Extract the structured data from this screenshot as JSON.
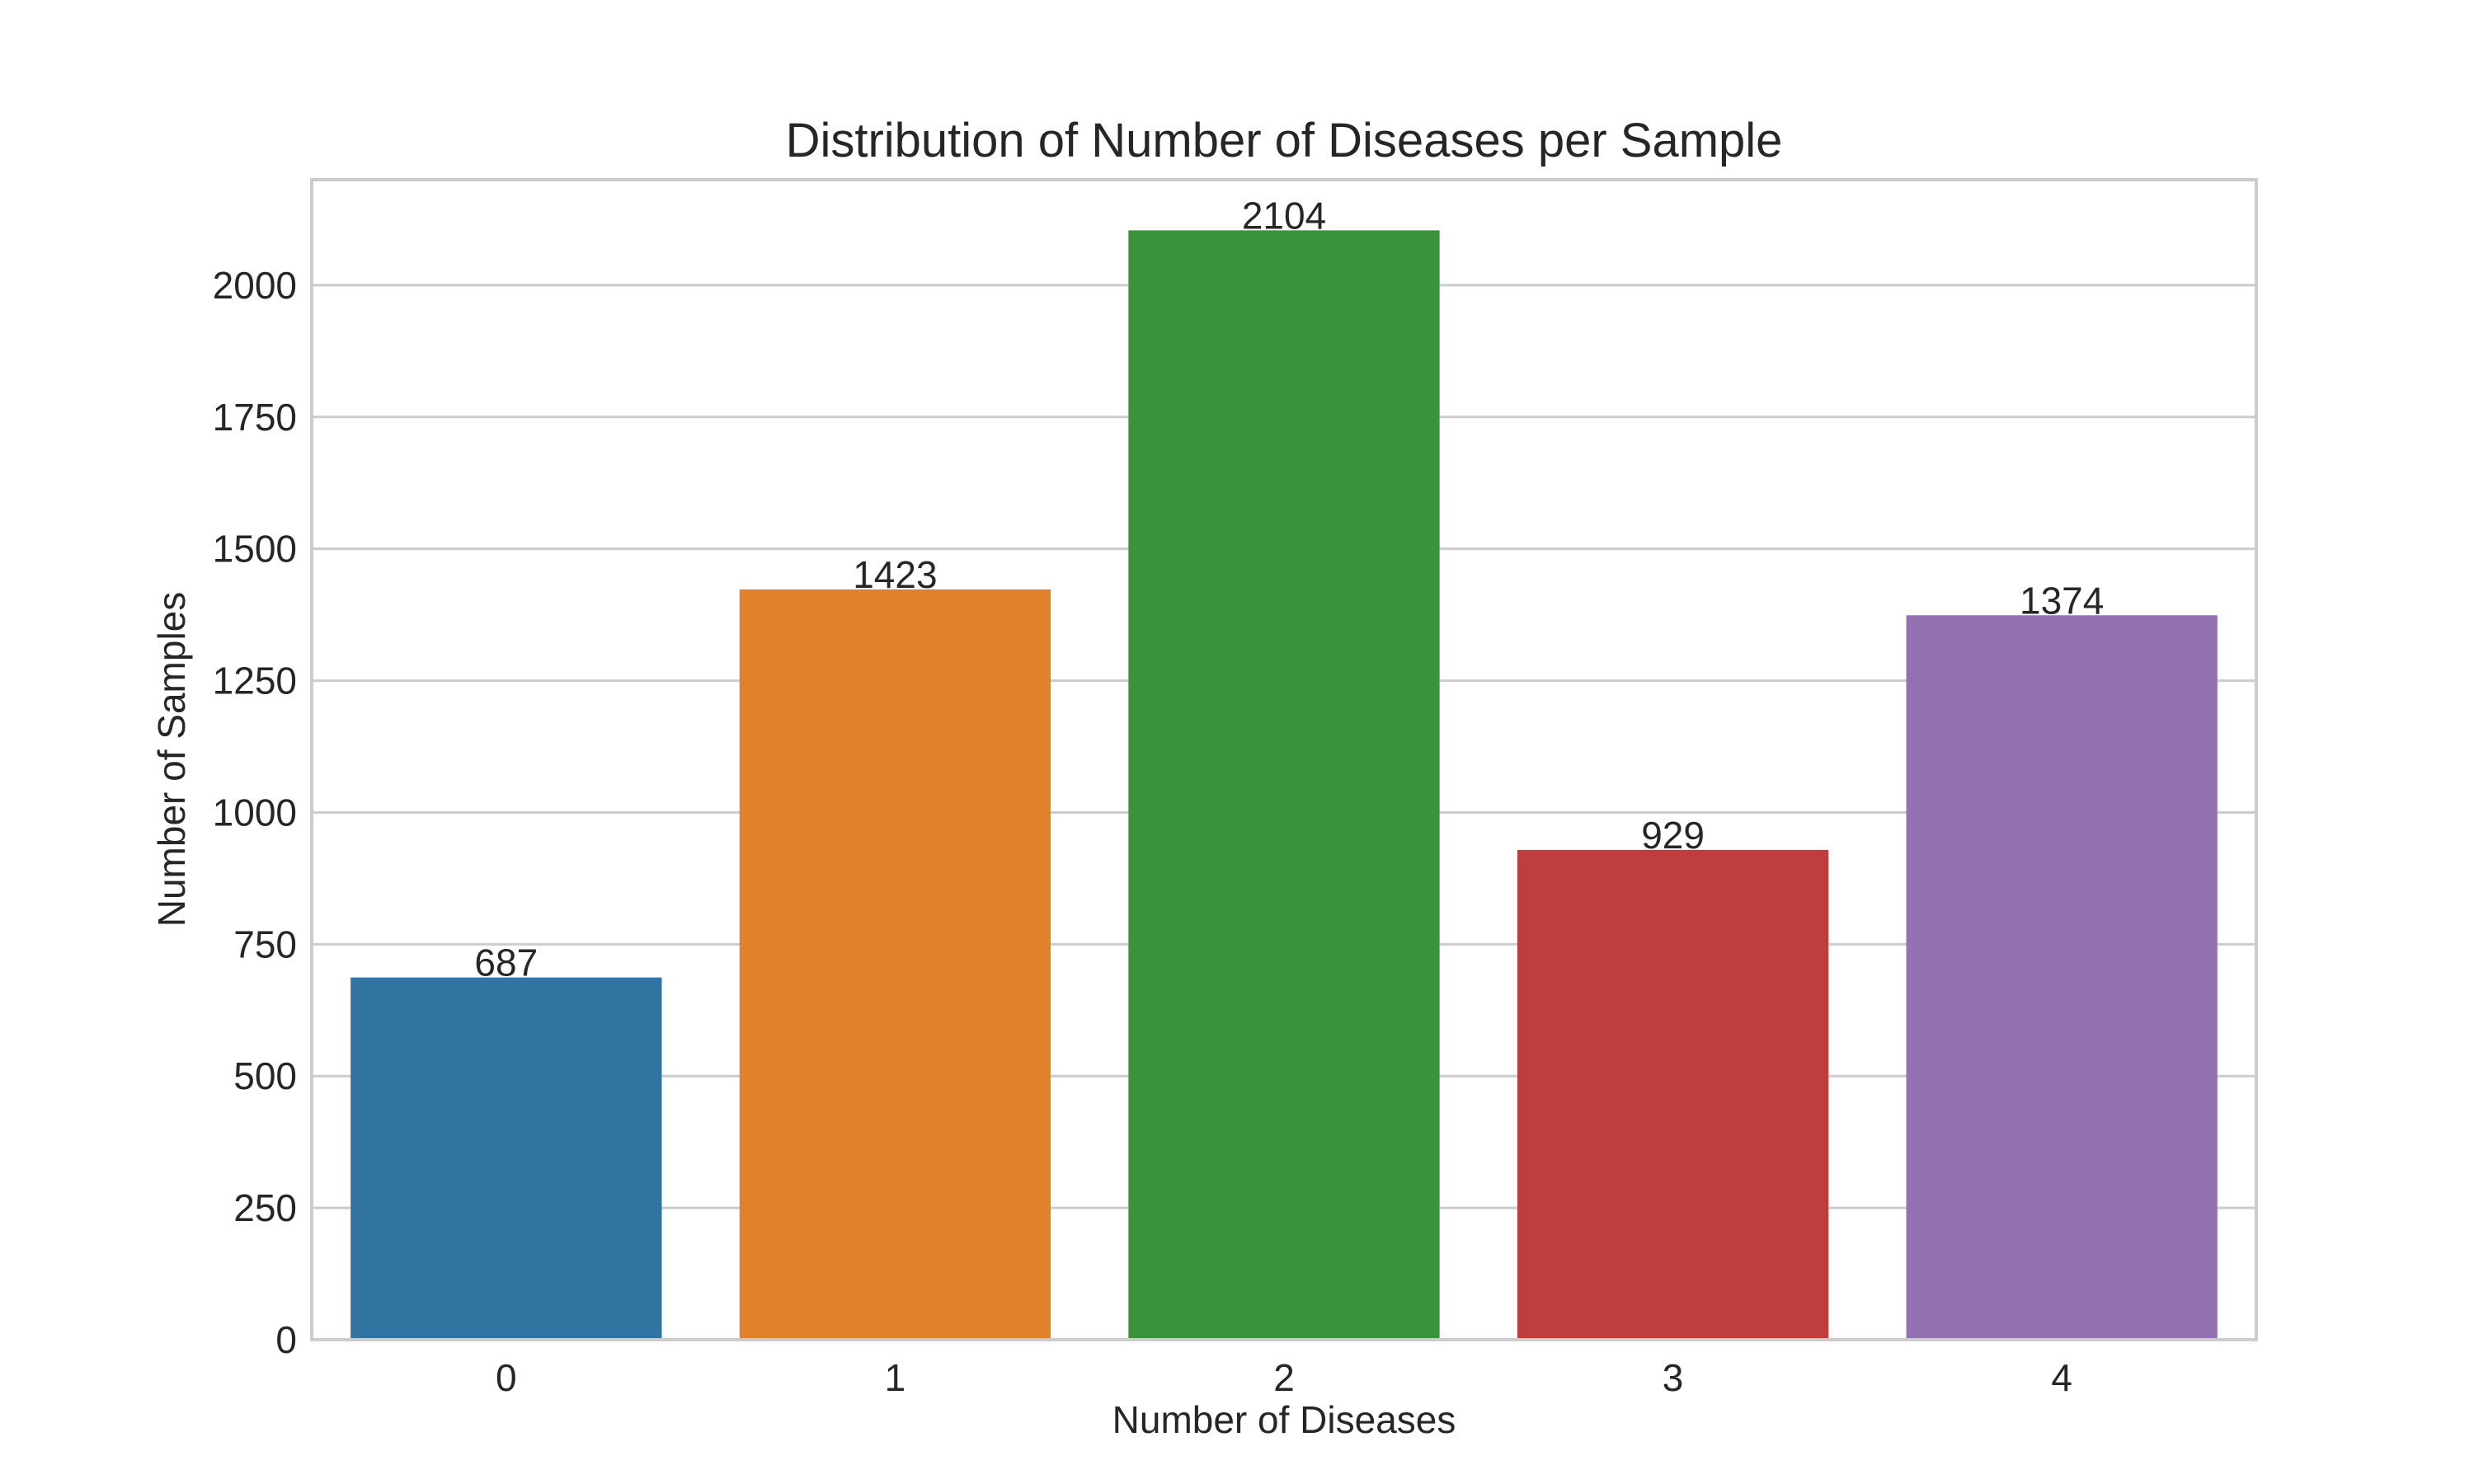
{
  "chart_data": {
    "type": "bar",
    "title": "Distribution of Number of Diseases per Sample",
    "xlabel": "Number of Diseases",
    "ylabel": "Number of Samples",
    "categories": [
      "0",
      "1",
      "2",
      "3",
      "4"
    ],
    "values": [
      687,
      1423,
      2104,
      929,
      1374
    ],
    "data_labels": [
      "687",
      "1423",
      "2104",
      "929",
      "1374"
    ],
    "colors": [
      "#3274a1",
      "#e1812c",
      "#3a923a",
      "#c03d3e",
      "#9372b2"
    ],
    "ylim": [
      0,
      2200
    ],
    "yticks": [
      0,
      250,
      500,
      750,
      1000,
      1250,
      1500,
      1750,
      2000
    ],
    "ytick_labels": [
      "0",
      "250",
      "500",
      "750",
      "1000",
      "1250",
      "1500",
      "1750",
      "2000"
    ],
    "grid": true,
    "grid_axis": "y",
    "legend": false
  }
}
